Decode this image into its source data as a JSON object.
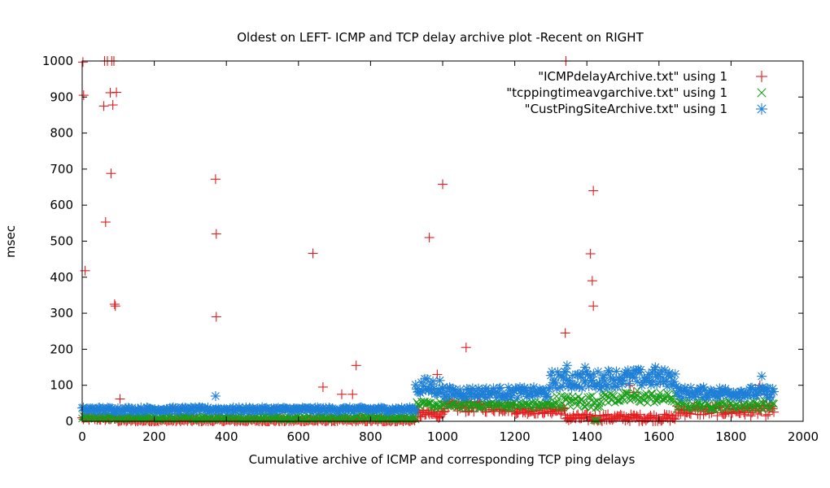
{
  "chart_data": {
    "type": "scatter",
    "title": "Oldest on LEFT- ICMP and TCP delay archive plot -Recent on RIGHT",
    "xlabel": "Cumulative archive of ICMP and corresponding TCP ping delays",
    "ylabel": "msec",
    "xlim": [
      0,
      2000
    ],
    "ylim": [
      0,
      1000
    ],
    "xticks": [
      "0",
      "200",
      "400",
      "600",
      "800",
      "1000",
      "1200",
      "1400",
      "1600",
      "1800",
      "2000"
    ],
    "yticks": [
      "0",
      "100",
      "200",
      "300",
      "400",
      "500",
      "600",
      "700",
      "800",
      "900",
      "1000"
    ],
    "grid": false,
    "legend_position": "top-right",
    "series": [
      {
        "name": "\"ICMPdelayArchive.txt\" using 1",
        "marker": "plus",
        "color": "#e41a1c",
        "outliers": [
          [
            2,
            997
          ],
          [
            4,
            905
          ],
          [
            8,
            418
          ],
          [
            60,
            875
          ],
          [
            62,
            1000
          ],
          [
            65,
            553
          ],
          [
            70,
            1000
          ],
          [
            78,
            912
          ],
          [
            80,
            688
          ],
          [
            82,
            1000
          ],
          [
            85,
            878
          ],
          [
            88,
            1000
          ],
          [
            90,
            325
          ],
          [
            92,
            320
          ],
          [
            95,
            913
          ],
          [
            105,
            62
          ],
          [
            370,
            672
          ],
          [
            372,
            520
          ],
          [
            372,
            290
          ],
          [
            640,
            466
          ],
          [
            668,
            95
          ],
          [
            720,
            75
          ],
          [
            750,
            75
          ],
          [
            760,
            155
          ],
          [
            963,
            510
          ],
          [
            985,
            130
          ],
          [
            1000,
            658
          ],
          [
            1065,
            205
          ],
          [
            1340,
            245
          ],
          [
            1342,
            1000
          ],
          [
            1410,
            465
          ],
          [
            1415,
            390
          ],
          [
            1418,
            320
          ],
          [
            1418,
            640
          ],
          [
            1520,
            100
          ],
          [
            1530,
            80
          ],
          [
            1880,
            100
          ],
          [
            1900,
            75
          ]
        ],
        "baseline": [
          {
            "x": [
              0,
              100
            ],
            "mean": 8,
            "spread": 6
          },
          {
            "x": [
              100,
              925
            ],
            "mean": 3,
            "spread": 5
          },
          {
            "x": [
              925,
              1000
            ],
            "mean": 20,
            "spread": 12
          },
          {
            "x": [
              1000,
              1200
            ],
            "mean": 40,
            "spread": 15
          },
          {
            "x": [
              1200,
              1340
            ],
            "mean": 30,
            "spread": 10
          },
          {
            "x": [
              1340,
              1650
            ],
            "mean": 10,
            "spread": 10
          },
          {
            "x": [
              1650,
              1920
            ],
            "mean": 30,
            "spread": 15
          }
        ]
      },
      {
        "name": "\"tcppingtimeavgarchive.txt\" using 1",
        "marker": "x",
        "color": "#1a9e1a",
        "outliers": [
          [
            1420,
            4
          ],
          [
            1425,
            2
          ],
          [
            1430,
            3
          ],
          [
            1540,
            85
          ],
          [
            1580,
            78
          ]
        ],
        "baseline": [
          {
            "x": [
              0,
              925
            ],
            "mean": 10,
            "spread": 5
          },
          {
            "x": [
              925,
              1300
            ],
            "mean": 45,
            "spread": 10
          },
          {
            "x": [
              1300,
              1440
            ],
            "mean": 55,
            "spread": 18
          },
          {
            "x": [
              1440,
              1650
            ],
            "mean": 65,
            "spread": 15
          },
          {
            "x": [
              1650,
              1920
            ],
            "mean": 45,
            "spread": 12
          }
        ]
      },
      {
        "name": "\"CustPingSiteArchive.txt\" using 1",
        "marker": "star",
        "color": "#1e7fd6",
        "outliers": [
          [
            370,
            70
          ],
          [
            1345,
            155
          ],
          [
            1395,
            150
          ],
          [
            1590,
            150
          ],
          [
            1885,
            125
          ]
        ],
        "baseline": [
          {
            "x": [
              0,
              925
            ],
            "mean": 33,
            "spread": 6
          },
          {
            "x": [
              925,
              1000
            ],
            "mean": 95,
            "spread": 25
          },
          {
            "x": [
              1000,
              1300
            ],
            "mean": 80,
            "spread": 15
          },
          {
            "x": [
              1300,
              1450
            ],
            "mean": 115,
            "spread": 25
          },
          {
            "x": [
              1450,
              1650
            ],
            "mean": 120,
            "spread": 25
          },
          {
            "x": [
              1650,
              1920
            ],
            "mean": 80,
            "spread": 15
          }
        ]
      }
    ]
  }
}
